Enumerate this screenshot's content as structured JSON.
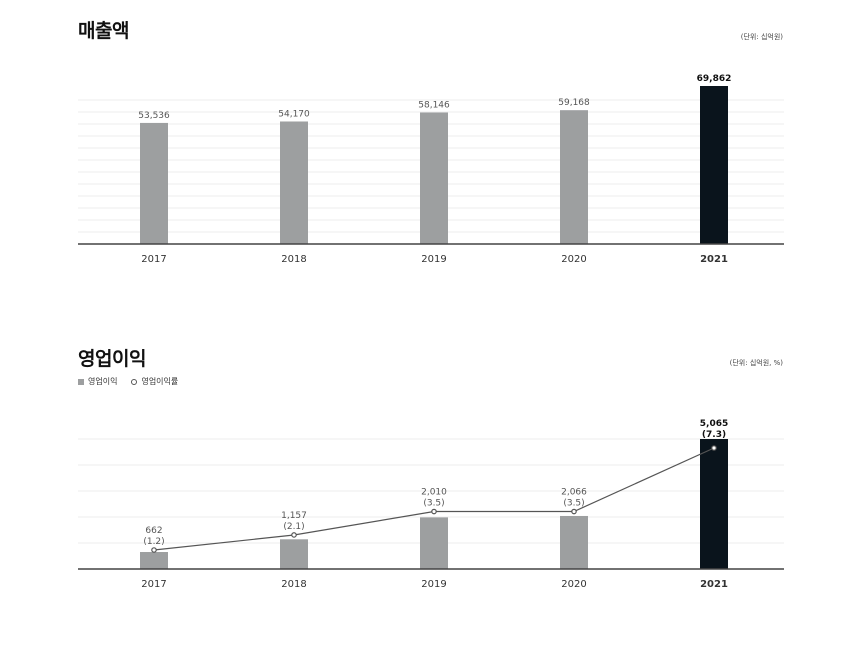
{
  "sections": {
    "revenue": {
      "title": "매출액",
      "unit": "(단위: 십억원)"
    },
    "operating": {
      "title": "영업이익",
      "unit": "(단위: 십억원, %)",
      "legend": {
        "bar": "영업이익",
        "line": "영업이익률"
      }
    }
  },
  "colors": {
    "bar": "#9d9fa0",
    "highlight": "#0a141c",
    "line": "#555555",
    "grid": "#ececec",
    "axis": "#444444"
  },
  "chart_data": [
    {
      "type": "bar",
      "title": "매출액",
      "categories": [
        "2017",
        "2018",
        "2019",
        "2020",
        "2021"
      ],
      "values": [
        53536,
        54170,
        58146,
        59168,
        69862
      ],
      "labels": [
        "53,536",
        "54,170",
        "58,146",
        "59,168",
        "69,862"
      ],
      "highlight_index": 4,
      "ylim": [
        0,
        69862
      ],
      "grid": true
    },
    {
      "type": "bar",
      "title": "영업이익",
      "categories": [
        "2017",
        "2018",
        "2019",
        "2020",
        "2021"
      ],
      "series": [
        {
          "name": "영업이익",
          "type": "bar",
          "values": [
            662,
            1157,
            2010,
            2066,
            5065
          ],
          "labels": [
            "662",
            "1,157",
            "2,010",
            "2,066",
            "5,065"
          ]
        },
        {
          "name": "영업이익률",
          "type": "line",
          "values": [
            1.2,
            2.1,
            3.5,
            3.5,
            7.3
          ],
          "labels": [
            "(1.2)",
            "(2.1)",
            "(3.5)",
            "(3.5)",
            "(7.3)"
          ]
        }
      ],
      "highlight_index": 4,
      "grid": true,
      "legend": "top-left"
    }
  ]
}
